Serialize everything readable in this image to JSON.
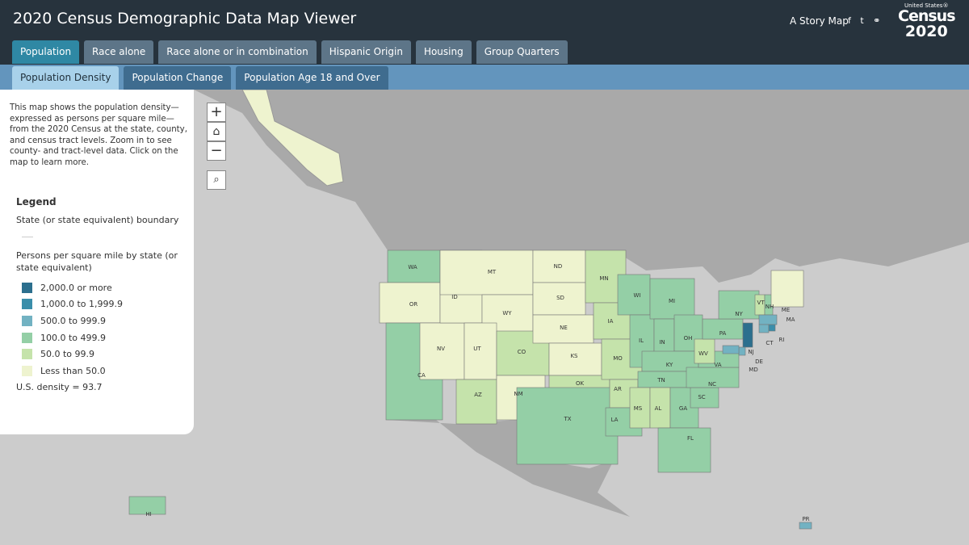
{
  "header": {
    "title": "2020 Census Demographic Data Map Viewer",
    "story_map": "A Story Map",
    "logo_top": "United States®",
    "logo_main": "Census",
    "logo_year": "2020"
  },
  "tabs": [
    "Population",
    "Race alone",
    "Race alone or in combination",
    "Hispanic Origin",
    "Housing",
    "Group Quarters"
  ],
  "subtabs": [
    "Population Density",
    "Population Change",
    "Population Age 18 and Over"
  ],
  "panel": {
    "description": "This map shows the population density—expressed as persons per square mile—from the 2020 Census at the state, county, and census tract levels. Zoom in to see county- and tract-level data. Click on the map to learn more.",
    "legend_title": "Legend",
    "boundary_label": "State (or state equivalent) boundary",
    "density_title": "Persons per square mile by state (or state equivalent)",
    "classes": [
      {
        "label": "2,000.0 or more",
        "color": "#2c6f8e"
      },
      {
        "label": "1,000.0 to 1,999.9",
        "color": "#3a8eaa"
      },
      {
        "label": "500.0 to 999.9",
        "color": "#72b2c2"
      },
      {
        "label": "100.0 to 499.9",
        "color": "#94cfa6"
      },
      {
        "label": "50.0 to 99.9",
        "color": "#c5e3ab"
      },
      {
        "label": "Less than 50.0",
        "color": "#eef3cf"
      }
    ],
    "us_density": "U.S. density = 93.7"
  },
  "map": {
    "states": [
      {
        "label": "WA",
        "color": "#94cfa6"
      },
      {
        "label": "OR",
        "color": "#eef3cf"
      },
      {
        "label": "CA",
        "color": "#94cfa6"
      },
      {
        "label": "NV",
        "color": "#eef3cf"
      },
      {
        "label": "ID",
        "color": "#eef3cf"
      },
      {
        "label": "MT",
        "color": "#eef3cf"
      },
      {
        "label": "WY",
        "color": "#eef3cf"
      },
      {
        "label": "UT",
        "color": "#eef3cf"
      },
      {
        "label": "AZ",
        "color": "#c5e3ab"
      },
      {
        "label": "CO",
        "color": "#c5e3ab"
      },
      {
        "label": "NM",
        "color": "#eef3cf"
      },
      {
        "label": "ND",
        "color": "#eef3cf"
      },
      {
        "label": "SD",
        "color": "#eef3cf"
      },
      {
        "label": "NE",
        "color": "#eef3cf"
      },
      {
        "label": "KS",
        "color": "#eef3cf"
      },
      {
        "label": "OK",
        "color": "#c5e3ab"
      },
      {
        "label": "TX",
        "color": "#94cfa6"
      },
      {
        "label": "MN",
        "color": "#c5e3ab"
      },
      {
        "label": "IA",
        "color": "#c5e3ab"
      },
      {
        "label": "MO",
        "color": "#c5e3ab"
      },
      {
        "label": "AR",
        "color": "#c5e3ab"
      },
      {
        "label": "LA",
        "color": "#94cfa6"
      },
      {
        "label": "WI",
        "color": "#94cfa6"
      },
      {
        "label": "IL",
        "color": "#94cfa6"
      },
      {
        "label": "MI",
        "color": "#94cfa6"
      },
      {
        "label": "IN",
        "color": "#94cfa6"
      },
      {
        "label": "OH",
        "color": "#94cfa6"
      },
      {
        "label": "KY",
        "color": "#94cfa6"
      },
      {
        "label": "TN",
        "color": "#94cfa6"
      },
      {
        "label": "MS",
        "color": "#c5e3ab"
      },
      {
        "label": "AL",
        "color": "#c5e3ab"
      },
      {
        "label": "GA",
        "color": "#94cfa6"
      },
      {
        "label": "FL",
        "color": "#94cfa6"
      },
      {
        "label": "SC",
        "color": "#94cfa6"
      },
      {
        "label": "NC",
        "color": "#94cfa6"
      },
      {
        "label": "VA",
        "color": "#94cfa6"
      },
      {
        "label": "WV",
        "color": "#c5e3ab"
      },
      {
        "label": "PA",
        "color": "#94cfa6"
      },
      {
        "label": "NY",
        "color": "#94cfa6"
      },
      {
        "label": "VT",
        "color": "#c5e3ab"
      },
      {
        "label": "NH",
        "color": "#94cfa6"
      },
      {
        "label": "ME",
        "color": "#eef3cf"
      },
      {
        "label": "MA",
        "color": "#72b2c2"
      },
      {
        "label": "CT",
        "color": "#72b2c2"
      },
      {
        "label": "RI",
        "color": "#3a8eaa"
      },
      {
        "label": "NJ",
        "color": "#2c6f8e"
      },
      {
        "label": "DE",
        "color": "#72b2c2"
      },
      {
        "label": "MD",
        "color": "#72b2c2"
      },
      {
        "label": "HI",
        "color": "#94cfa6"
      },
      {
        "label": "PR",
        "color": "#72b2c2"
      }
    ]
  }
}
